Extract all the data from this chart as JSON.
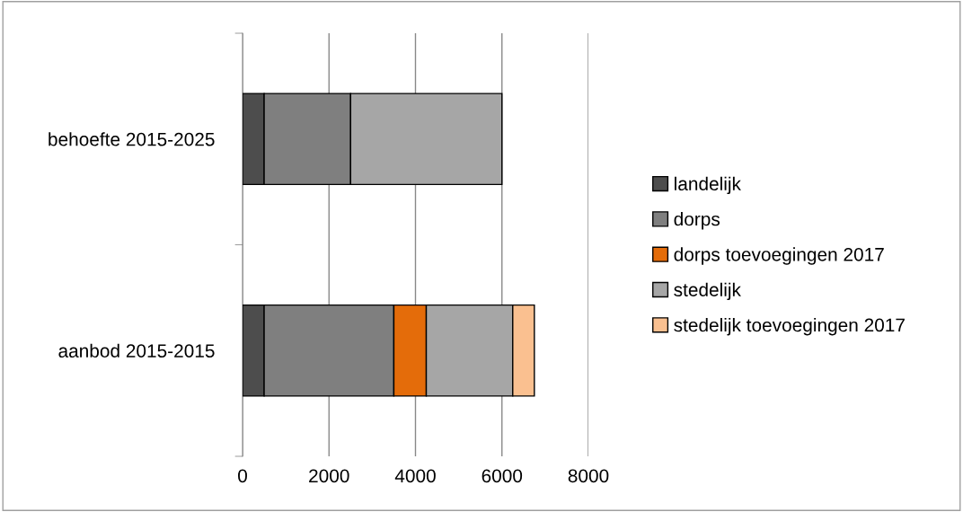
{
  "chart_data": {
    "type": "bar",
    "orientation": "horizontal",
    "stacked": true,
    "categories": [
      "behoefte 2015-2025",
      "aanbod 2015-2015"
    ],
    "series": [
      {
        "name": "landelijk",
        "color": "#4d4d4d",
        "values": [
          500,
          500
        ]
      },
      {
        "name": "dorps",
        "color": "#7f7f7f",
        "values": [
          2000,
          3000
        ]
      },
      {
        "name": "dorps toevoegingen 2017",
        "color": "#e46c0a",
        "values": [
          null,
          750
        ]
      },
      {
        "name": "stedelijk",
        "color": "#a6a6a6",
        "values": [
          3500,
          2000
        ]
      },
      {
        "name": "stedelijk toevoegingen 2017",
        "color": "#fac090",
        "values": [
          null,
          500
        ]
      }
    ],
    "xlim": [
      0,
      8000
    ],
    "xticks": [
      0,
      2000,
      4000,
      6000,
      8000
    ],
    "grid": "x",
    "legend": "right"
  }
}
